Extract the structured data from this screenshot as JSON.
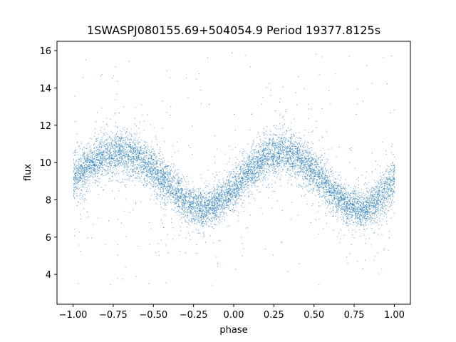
{
  "chart_data": {
    "type": "scatter",
    "title": "1SWASPJ080155.69+504054.9 Period 19377.8125s",
    "xlabel": "phase",
    "ylabel": "flux",
    "xlim": [
      -1.1,
      1.1
    ],
    "ylim": [
      2.4,
      16.5
    ],
    "x_ticks": [
      -1.0,
      -0.75,
      -0.5,
      -0.25,
      0.0,
      0.25,
      0.5,
      0.75,
      1.0
    ],
    "x_tick_labels": [
      "−1.00",
      "−0.75",
      "−0.50",
      "−0.25",
      "0.00",
      "0.25",
      "0.50",
      "0.75",
      "1.00"
    ],
    "y_ticks": [
      4,
      6,
      8,
      10,
      12,
      14,
      16
    ],
    "y_tick_labels": [
      "4",
      "6",
      "8",
      "10",
      "12",
      "14",
      "16"
    ],
    "grid": false,
    "legend": "none",
    "series": [
      {
        "marker_color": "#1f77b4",
        "x_range": [
          -1.0,
          1.0
        ],
        "profile": {
          "phase": [
            -1.0,
            -0.9,
            -0.8,
            -0.7,
            -0.6,
            -0.5,
            -0.4,
            -0.3,
            -0.2,
            -0.1,
            0.0,
            0.1,
            0.2,
            0.3,
            0.4,
            0.5,
            0.6,
            0.7,
            0.8,
            0.9,
            1.0
          ],
          "flux_center": [
            9.2,
            9.9,
            10.4,
            10.6,
            10.3,
            9.6,
            8.7,
            7.9,
            7.5,
            7.8,
            8.6,
            9.6,
            10.3,
            10.6,
            10.3,
            9.5,
            8.6,
            7.8,
            7.5,
            8.0,
            9.2
          ],
          "band_halfwidth": [
            1.1,
            1.0,
            1.0,
            1.0,
            1.0,
            1.0,
            1.0,
            0.9,
            0.9,
            0.9,
            1.0,
            1.0,
            1.0,
            1.0,
            1.0,
            1.0,
            0.9,
            0.9,
            0.9,
            1.0,
            1.1
          ]
        }
      }
    ]
  }
}
